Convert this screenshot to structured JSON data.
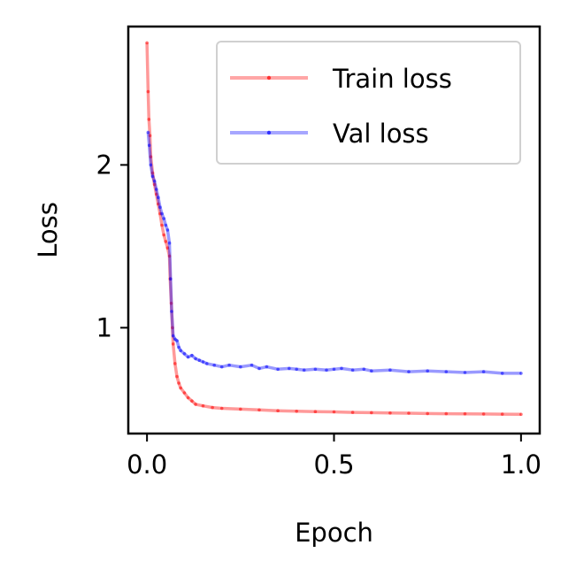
{
  "chart_data": {
    "type": "line",
    "xlabel": "Epoch",
    "ylabel": "Loss",
    "xlim": [
      -0.05,
      1.05
    ],
    "ylim": [
      0.35,
      2.85
    ],
    "xticks": [
      {
        "value": 0.0,
        "label": "0.0"
      },
      {
        "value": 0.5,
        "label": "0.5"
      },
      {
        "value": 1.0,
        "label": "1.0"
      }
    ],
    "yticks": [
      {
        "value": 1,
        "label": "1"
      },
      {
        "value": 2,
        "label": "2"
      }
    ],
    "legend_position": "top-right",
    "grid": false,
    "series": [
      {
        "name": "Train loss",
        "color": "#ff0000",
        "x": [
          0.0,
          0.003,
          0.005,
          0.008,
          0.01,
          0.015,
          0.02,
          0.025,
          0.03,
          0.035,
          0.04,
          0.045,
          0.05,
          0.055,
          0.06,
          0.062,
          0.065,
          0.068,
          0.07,
          0.075,
          0.08,
          0.085,
          0.09,
          0.1,
          0.11,
          0.12,
          0.13,
          0.15,
          0.175,
          0.2,
          0.25,
          0.3,
          0.35,
          0.4,
          0.45,
          0.5,
          0.55,
          0.6,
          0.65,
          0.7,
          0.75,
          0.8,
          0.85,
          0.9,
          0.95,
          1.0
        ],
        "y": [
          2.75,
          2.45,
          2.28,
          2.18,
          2.05,
          1.95,
          1.88,
          1.82,
          1.76,
          1.7,
          1.63,
          1.57,
          1.53,
          1.49,
          1.44,
          1.3,
          1.15,
          1.0,
          0.9,
          0.78,
          0.7,
          0.66,
          0.63,
          0.6,
          0.57,
          0.55,
          0.53,
          0.52,
          0.51,
          0.505,
          0.5,
          0.495,
          0.49,
          0.487,
          0.485,
          0.483,
          0.48,
          0.478,
          0.476,
          0.475,
          0.473,
          0.472,
          0.471,
          0.47,
          0.469,
          0.468
        ]
      },
      {
        "name": "Val loss",
        "color": "#0000ff",
        "x": [
          0.003,
          0.006,
          0.01,
          0.015,
          0.02,
          0.025,
          0.03,
          0.035,
          0.04,
          0.045,
          0.05,
          0.055,
          0.06,
          0.063,
          0.066,
          0.07,
          0.075,
          0.08,
          0.085,
          0.09,
          0.1,
          0.11,
          0.12,
          0.13,
          0.14,
          0.15,
          0.16,
          0.18,
          0.2,
          0.22,
          0.25,
          0.28,
          0.3,
          0.32,
          0.35,
          0.38,
          0.4,
          0.42,
          0.45,
          0.48,
          0.5,
          0.52,
          0.55,
          0.58,
          0.6,
          0.65,
          0.7,
          0.75,
          0.8,
          0.85,
          0.9,
          0.95,
          1.0
        ],
        "y": [
          2.2,
          2.12,
          2.0,
          1.93,
          1.9,
          1.85,
          1.8,
          1.74,
          1.7,
          1.67,
          1.63,
          1.6,
          1.52,
          1.3,
          1.1,
          0.95,
          0.93,
          0.92,
          0.88,
          0.86,
          0.84,
          0.82,
          0.83,
          0.81,
          0.8,
          0.79,
          0.78,
          0.77,
          0.76,
          0.77,
          0.76,
          0.77,
          0.75,
          0.76,
          0.745,
          0.75,
          0.745,
          0.74,
          0.745,
          0.74,
          0.745,
          0.75,
          0.74,
          0.745,
          0.735,
          0.74,
          0.73,
          0.735,
          0.73,
          0.725,
          0.73,
          0.72,
          0.72
        ]
      }
    ]
  }
}
